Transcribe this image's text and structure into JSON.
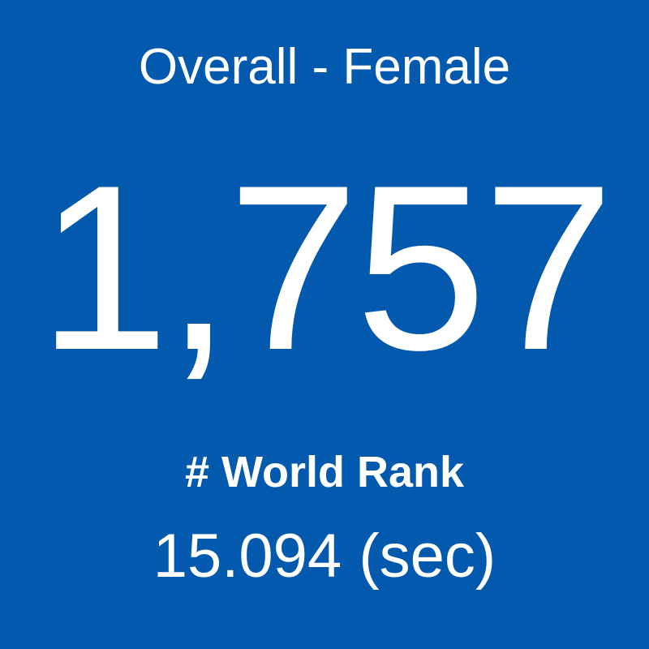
{
  "tile": {
    "title": "Overall - Female",
    "value": "1,757",
    "label": "# World Rank",
    "time": "15.094 (sec)"
  }
}
